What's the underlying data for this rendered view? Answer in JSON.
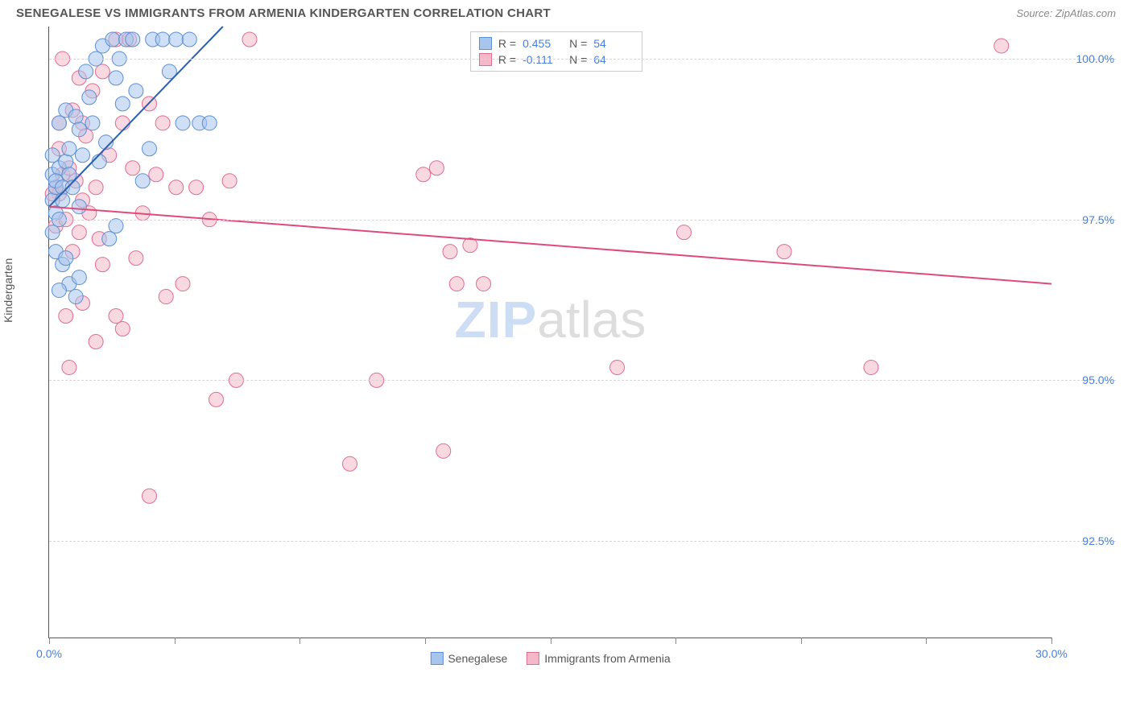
{
  "header": {
    "title": "SENEGALESE VS IMMIGRANTS FROM ARMENIA KINDERGARTEN CORRELATION CHART",
    "source_label": "Source:",
    "source_name": "ZipAtlas.com"
  },
  "chart": {
    "type": "scatter",
    "y_axis_label": "Kindergarten",
    "xlim": [
      0,
      30
    ],
    "ylim": [
      91,
      100.5
    ],
    "x_ticks": [
      0,
      3.75,
      7.5,
      11.25,
      15,
      18.75,
      22.5,
      26.25,
      30
    ],
    "x_tick_labels": {
      "0": "0.0%",
      "30": "30.0%"
    },
    "y_grid": [
      92.5,
      95.0,
      97.5,
      100.0
    ],
    "y_tick_labels": [
      "92.5%",
      "95.0%",
      "97.5%",
      "100.0%"
    ],
    "background_color": "#ffffff",
    "grid_color": "#d5d5d5",
    "series": [
      {
        "name": "Senegalese",
        "color_fill": "#a8c5ed",
        "color_stroke": "#5b8fd6",
        "marker_radius": 9,
        "fill_opacity": 0.55,
        "r_value": "0.455",
        "n_value": "54",
        "trend": {
          "x1": 0,
          "y1": 97.7,
          "x2": 5.2,
          "y2": 100.5,
          "color": "#2b5fb0",
          "width": 2
        },
        "points": [
          [
            0.1,
            97.8
          ],
          [
            0.2,
            98.0
          ],
          [
            0.1,
            98.2
          ],
          [
            0.3,
            98.3
          ],
          [
            0.2,
            98.1
          ],
          [
            0.4,
            98.0
          ],
          [
            0.2,
            97.6
          ],
          [
            0.3,
            97.5
          ],
          [
            0.1,
            97.3
          ],
          [
            0.4,
            97.8
          ],
          [
            0.5,
            98.4
          ],
          [
            0.6,
            98.2
          ],
          [
            0.3,
            99.0
          ],
          [
            0.5,
            99.2
          ],
          [
            0.8,
            99.1
          ],
          [
            0.9,
            98.9
          ],
          [
            0.6,
            98.6
          ],
          [
            0.7,
            98.0
          ],
          [
            0.4,
            96.8
          ],
          [
            0.6,
            96.5
          ],
          [
            0.8,
            96.3
          ],
          [
            0.3,
            96.4
          ],
          [
            0.9,
            96.6
          ],
          [
            1.0,
            98.5
          ],
          [
            1.2,
            99.4
          ],
          [
            1.1,
            99.8
          ],
          [
            1.4,
            100.0
          ],
          [
            1.6,
            100.2
          ],
          [
            1.9,
            100.3
          ],
          [
            2.3,
            100.3
          ],
          [
            1.3,
            99.0
          ],
          [
            1.5,
            98.4
          ],
          [
            1.7,
            98.7
          ],
          [
            2.0,
            99.7
          ],
          [
            2.2,
            99.3
          ],
          [
            2.1,
            100.0
          ],
          [
            2.6,
            99.5
          ],
          [
            2.5,
            100.3
          ],
          [
            3.1,
            100.3
          ],
          [
            3.4,
            100.3
          ],
          [
            3.8,
            100.3
          ],
          [
            4.2,
            100.3
          ],
          [
            2.8,
            98.1
          ],
          [
            3.0,
            98.6
          ],
          [
            4.0,
            99.0
          ],
          [
            4.5,
            99.0
          ],
          [
            4.8,
            99.0
          ],
          [
            3.6,
            99.8
          ],
          [
            1.8,
            97.2
          ],
          [
            2.0,
            97.4
          ],
          [
            0.2,
            97.0
          ],
          [
            0.5,
            96.9
          ],
          [
            0.9,
            97.7
          ],
          [
            0.1,
            98.5
          ]
        ]
      },
      {
        "name": "Immigrants from Armenia",
        "color_fill": "#f3b9c9",
        "color_stroke": "#e36b8f",
        "marker_radius": 9,
        "fill_opacity": 0.55,
        "r_value": "-0.111",
        "n_value": "64",
        "trend": {
          "x1": 0,
          "y1": 97.7,
          "x2": 30,
          "y2": 96.5,
          "color": "#e04a7a",
          "width": 2
        },
        "points": [
          [
            0.2,
            98.0
          ],
          [
            0.4,
            98.2
          ],
          [
            0.3,
            97.9
          ],
          [
            0.6,
            98.3
          ],
          [
            0.8,
            98.1
          ],
          [
            1.0,
            97.8
          ],
          [
            0.2,
            97.4
          ],
          [
            0.5,
            97.5
          ],
          [
            0.9,
            97.3
          ],
          [
            1.2,
            97.6
          ],
          [
            0.3,
            99.0
          ],
          [
            0.7,
            99.2
          ],
          [
            1.0,
            99.0
          ],
          [
            1.3,
            99.5
          ],
          [
            1.6,
            99.8
          ],
          [
            2.0,
            100.3
          ],
          [
            2.4,
            100.3
          ],
          [
            1.8,
            98.5
          ],
          [
            1.4,
            98.0
          ],
          [
            2.2,
            99.0
          ],
          [
            2.5,
            98.3
          ],
          [
            3.0,
            99.3
          ],
          [
            3.4,
            99.0
          ],
          [
            3.2,
            98.2
          ],
          [
            2.8,
            97.6
          ],
          [
            3.8,
            98.0
          ],
          [
            4.4,
            98.0
          ],
          [
            4.8,
            97.5
          ],
          [
            5.4,
            98.1
          ],
          [
            6.0,
            100.3
          ],
          [
            4.0,
            96.5
          ],
          [
            3.5,
            96.3
          ],
          [
            2.0,
            96.0
          ],
          [
            2.2,
            95.8
          ],
          [
            1.0,
            96.2
          ],
          [
            1.4,
            95.6
          ],
          [
            0.6,
            95.2
          ],
          [
            1.6,
            96.8
          ],
          [
            0.5,
            96.0
          ],
          [
            3.0,
            93.2
          ],
          [
            5.0,
            94.7
          ],
          [
            5.6,
            95.0
          ],
          [
            9.0,
            93.7
          ],
          [
            9.8,
            95.0
          ],
          [
            11.2,
            98.2
          ],
          [
            11.6,
            98.3
          ],
          [
            12.0,
            97.0
          ],
          [
            12.6,
            97.1
          ],
          [
            12.2,
            96.5
          ],
          [
            11.8,
            93.9
          ],
          [
            13.0,
            96.5
          ],
          [
            17.0,
            95.2
          ],
          [
            19.0,
            97.3
          ],
          [
            22.0,
            97.0
          ],
          [
            24.6,
            95.2
          ],
          [
            28.5,
            100.2
          ],
          [
            0.1,
            97.9
          ],
          [
            0.3,
            98.6
          ],
          [
            0.7,
            97.0
          ],
          [
            1.1,
            98.8
          ],
          [
            1.5,
            97.2
          ],
          [
            2.6,
            96.9
          ],
          [
            0.9,
            99.7
          ],
          [
            0.4,
            100.0
          ]
        ]
      }
    ],
    "legend_top": {
      "r_label": "R =",
      "n_label": "N ="
    },
    "legend_bottom": [
      {
        "label": "Senegalese",
        "fill": "#a8c5ed",
        "stroke": "#5b8fd6"
      },
      {
        "label": "Immigrants from Armenia",
        "fill": "#f3b9c9",
        "stroke": "#e36b8f"
      }
    ],
    "watermark": {
      "part1": "ZIP",
      "part2": "atlas"
    }
  }
}
